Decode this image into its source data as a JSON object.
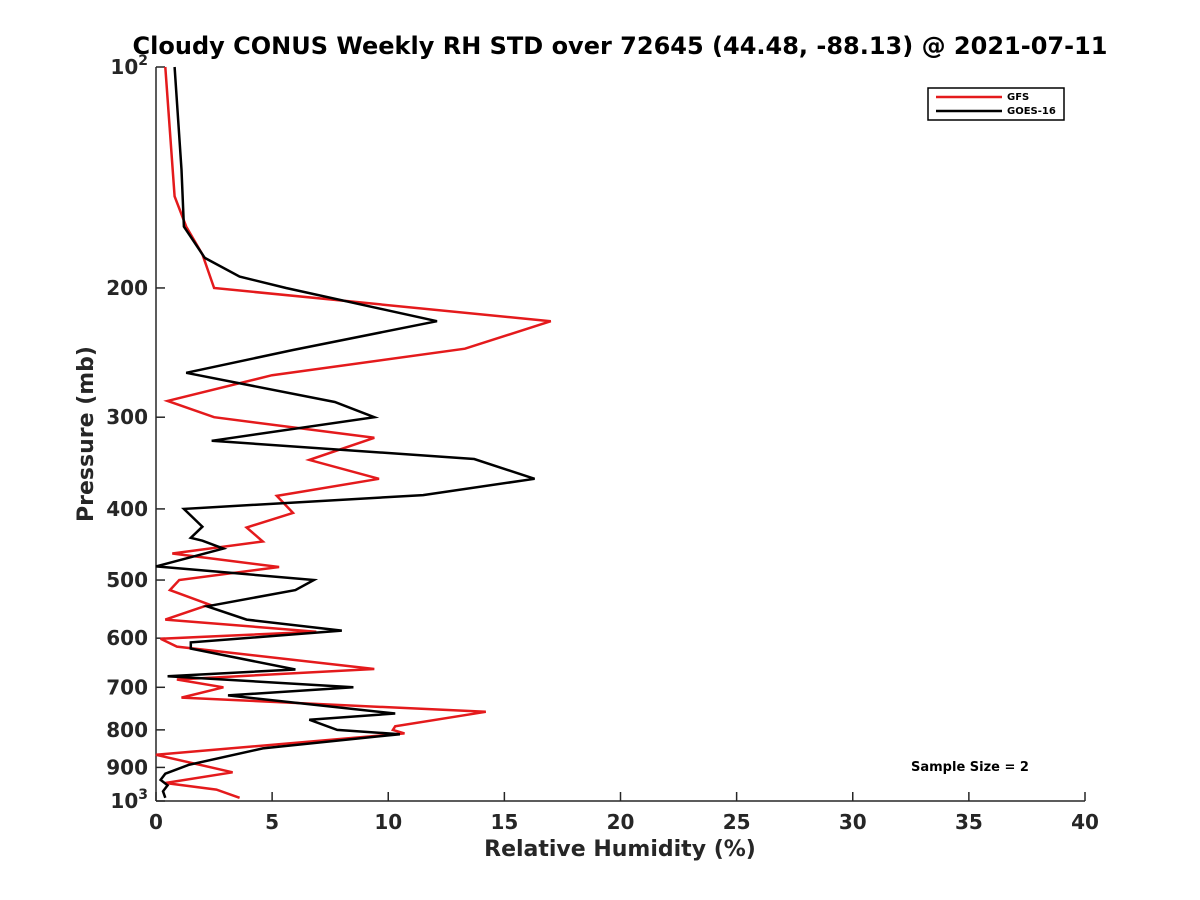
{
  "chart_data": {
    "type": "line",
    "title": "Cloudy CONUS Weekly RH STD over 72645 (44.48, -88.13) @ 2021-07-11",
    "xlabel": "Relative Humidity (%)",
    "ylabel": "Pressure (mb)",
    "xlim": [
      0,
      40
    ],
    "ylim": [
      100,
      1000
    ],
    "y_scale": "log",
    "y_reversed": true,
    "x_ticks": [
      0,
      5,
      10,
      15,
      20,
      25,
      30,
      35,
      40
    ],
    "y_ticks": [
      {
        "value": 100,
        "base": "10",
        "exp": "2"
      },
      {
        "value": 200,
        "label": "200"
      },
      {
        "value": 300,
        "label": "300"
      },
      {
        "value": 400,
        "label": "400"
      },
      {
        "value": 500,
        "label": "500"
      },
      {
        "value": 600,
        "label": "600"
      },
      {
        "value": 700,
        "label": "700"
      },
      {
        "value": 800,
        "label": "800"
      },
      {
        "value": 900,
        "label": "900"
      },
      {
        "value": 1000,
        "base": "10",
        "exp": "3"
      }
    ],
    "grid": false,
    "legend_position": "top-right",
    "annotation": "Sample Size = 2",
    "series": [
      {
        "name": "GFS",
        "color": "#e41a1c",
        "points": [
          [
            0.4,
            100
          ],
          [
            0.8,
            150
          ],
          [
            1.3,
            165
          ],
          [
            2.0,
            180
          ],
          [
            2.5,
            200
          ],
          [
            17.0,
            222
          ],
          [
            13.3,
            242
          ],
          [
            5.0,
            263
          ],
          [
            0.5,
            285
          ],
          [
            2.5,
            300
          ],
          [
            9.4,
            320
          ],
          [
            6.6,
            343
          ],
          [
            9.6,
            364
          ],
          [
            5.2,
            384
          ],
          [
            5.9,
            405
          ],
          [
            3.9,
            424
          ],
          [
            4.6,
            443
          ],
          [
            0.7,
            460
          ],
          [
            5.3,
            480
          ],
          [
            1.0,
            500
          ],
          [
            0.6,
            516
          ],
          [
            2.3,
            540
          ],
          [
            0.4,
            566
          ],
          [
            6.9,
            588
          ],
          [
            0.2,
            601
          ],
          [
            0.9,
            616
          ],
          [
            9.4,
            661
          ],
          [
            0.9,
            683
          ],
          [
            2.9,
            700
          ],
          [
            1.1,
            723
          ],
          [
            14.2,
            756
          ],
          [
            10.3,
            791
          ],
          [
            10.2,
            800
          ],
          [
            10.7,
            809
          ],
          [
            0.0,
            865
          ],
          [
            3.3,
            914
          ],
          [
            0.4,
            945
          ],
          [
            2.6,
            965
          ],
          [
            3.6,
            990
          ]
        ]
      },
      {
        "name": "GOES-16",
        "color": "#000000",
        "points": [
          [
            0.8,
            100
          ],
          [
            1.1,
            138
          ],
          [
            1.2,
            165
          ],
          [
            2.1,
            182
          ],
          [
            3.6,
            193
          ],
          [
            5.6,
            200
          ],
          [
            12.1,
            222
          ],
          [
            5.9,
            243
          ],
          [
            1.3,
            261
          ],
          [
            7.7,
            286
          ],
          [
            9.4,
            300
          ],
          [
            2.4,
            323
          ],
          [
            13.7,
            342
          ],
          [
            16.3,
            364
          ],
          [
            11.5,
            383
          ],
          [
            1.2,
            400
          ],
          [
            2.0,
            423
          ],
          [
            1.5,
            438
          ],
          [
            2.0,
            442
          ],
          [
            2.9,
            453
          ],
          [
            0.0,
            479
          ],
          [
            6.8,
            500
          ],
          [
            6.0,
            516
          ],
          [
            2.2,
            543
          ],
          [
            3.9,
            566
          ],
          [
            8.0,
            586
          ],
          [
            1.5,
            608
          ],
          [
            1.5,
            620
          ],
          [
            6.0,
            662
          ],
          [
            0.5,
            676
          ],
          [
            8.5,
            700
          ],
          [
            3.1,
            718
          ],
          [
            10.3,
            760
          ],
          [
            6.6,
            775
          ],
          [
            7.8,
            800
          ],
          [
            10.5,
            811
          ],
          [
            4.6,
            848
          ],
          [
            1.4,
            893
          ],
          [
            0.4,
            918
          ],
          [
            0.2,
            936
          ],
          [
            0.5,
            952
          ],
          [
            0.3,
            970
          ],
          [
            0.4,
            990
          ]
        ]
      }
    ]
  }
}
